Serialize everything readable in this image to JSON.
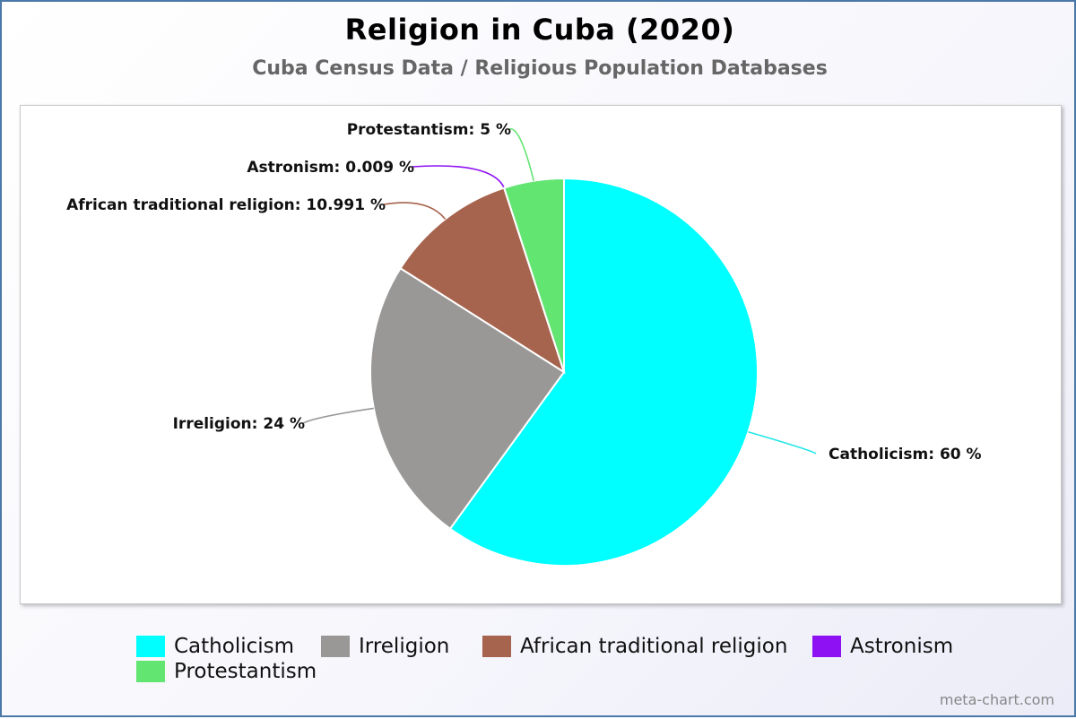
{
  "chart_data": {
    "type": "pie",
    "title": "Religion in Cuba (2020)",
    "subtitle": "Cuba Census Data / Religious Population Databases",
    "slices": [
      {
        "name": "Catholicism",
        "value": 60,
        "label": "Catholicism: 60 %",
        "color": "#00ffff"
      },
      {
        "name": "Irreligion",
        "value": 24,
        "label": "Irreligion: 24 %",
        "color": "#999897"
      },
      {
        "name": "African traditional religion",
        "value": 10.991,
        "label": "African traditional religion: 10.991 %",
        "color": "#a6634d"
      },
      {
        "name": "Astronism",
        "value": 0.009,
        "label": "Astronism: 0.009 %",
        "color": "#8e11f3"
      },
      {
        "name": "Protestantism",
        "value": 5,
        "label": "Protestantism: 5 %",
        "color": "#63e572"
      }
    ],
    "legend_position": "bottom"
  },
  "watermark": "meta-chart.com"
}
